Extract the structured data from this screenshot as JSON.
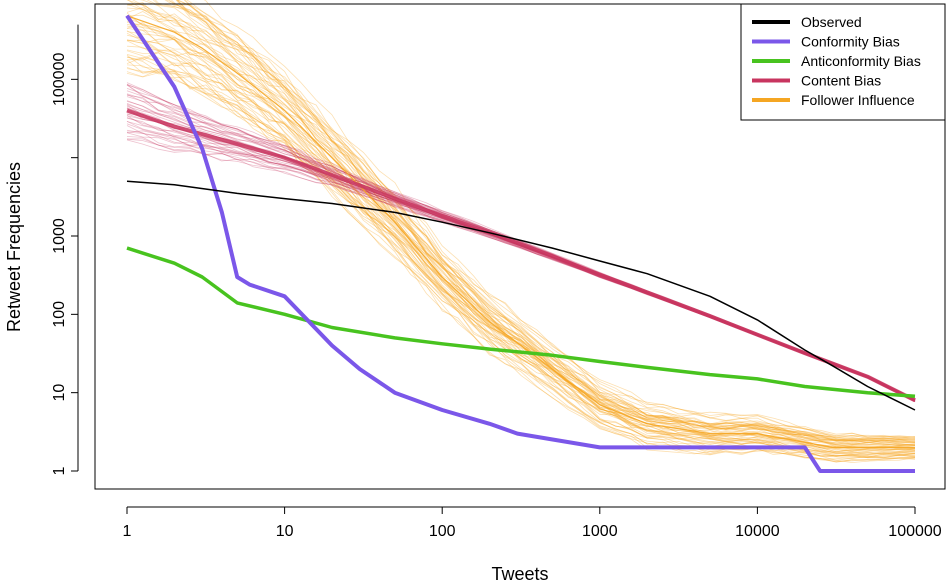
{
  "chart_data": {
    "type": "line",
    "scale": "log-log",
    "title": "",
    "xlabel": "Tweets",
    "ylabel": "Retweet Frequencies",
    "xlim": [
      1,
      100000
    ],
    "ylim": [
      1,
      1000000
    ],
    "x_ticks": [
      1,
      10,
      100,
      1000,
      10000,
      100000
    ],
    "x_tick_labels": [
      "1",
      "10",
      "100",
      "1000",
      "10000",
      "100000"
    ],
    "y_ticks": [
      1,
      10,
      100,
      1000,
      100000
    ],
    "y_tick_labels": [
      "1",
      "10",
      "100",
      "1000",
      "100000"
    ],
    "legend_position": "top-right",
    "series": [
      {
        "name": "Observed",
        "color": "#000000",
        "points": [
          [
            1,
            5000
          ],
          [
            2,
            4500
          ],
          [
            5,
            3500
          ],
          [
            10,
            3000
          ],
          [
            20,
            2600
          ],
          [
            50,
            2000
          ],
          [
            100,
            1500
          ],
          [
            200,
            1100
          ],
          [
            500,
            700
          ],
          [
            1000,
            480
          ],
          [
            2000,
            330
          ],
          [
            5000,
            170
          ],
          [
            10000,
            85
          ],
          [
            20000,
            35
          ],
          [
            30000,
            22
          ],
          [
            50000,
            12
          ],
          [
            100000,
            6
          ]
        ]
      },
      {
        "name": "Conformity Bias",
        "color": "#7b57e9",
        "points": [
          [
            1,
            650000
          ],
          [
            2,
            80000
          ],
          [
            3,
            13000
          ],
          [
            4,
            2000
          ],
          [
            5,
            300
          ],
          [
            6,
            240
          ],
          [
            10,
            170
          ],
          [
            20,
            40
          ],
          [
            30,
            20
          ],
          [
            50,
            10
          ],
          [
            100,
            6
          ],
          [
            200,
            4
          ],
          [
            300,
            3
          ],
          [
            1000,
            2
          ],
          [
            20000,
            2
          ],
          [
            25000,
            1
          ],
          [
            100000,
            1
          ]
        ]
      },
      {
        "name": "Anticonformity Bias",
        "color": "#48c31f",
        "points": [
          [
            1,
            700
          ],
          [
            2,
            450
          ],
          [
            3,
            300
          ],
          [
            5,
            140
          ],
          [
            10,
            100
          ],
          [
            20,
            68
          ],
          [
            50,
            50
          ],
          [
            100,
            42
          ],
          [
            200,
            36
          ],
          [
            500,
            30
          ],
          [
            1000,
            25
          ],
          [
            2000,
            21
          ],
          [
            5000,
            17
          ],
          [
            10000,
            15
          ],
          [
            20000,
            12
          ],
          [
            50000,
            10
          ],
          [
            100000,
            9
          ]
        ]
      },
      {
        "name": "Content Bias",
        "color": "#c8355f",
        "points": [
          [
            1,
            40000
          ],
          [
            2,
            25000
          ],
          [
            5,
            15000
          ],
          [
            10,
            10000
          ],
          [
            20,
            6000
          ],
          [
            50,
            3000
          ],
          [
            100,
            1800
          ],
          [
            200,
            1100
          ],
          [
            500,
            550
          ],
          [
            1000,
            320
          ],
          [
            2000,
            190
          ],
          [
            5000,
            95
          ],
          [
            10000,
            55
          ],
          [
            20000,
            32
          ],
          [
            50000,
            16
          ],
          [
            100000,
            8
          ]
        ]
      },
      {
        "name": "Follower Influence",
        "color": "#f5a623",
        "points": [
          [
            1,
            650000
          ],
          [
            2,
            400000
          ],
          [
            3,
            250000
          ],
          [
            5,
            120000
          ],
          [
            10,
            40000
          ],
          [
            20,
            10000
          ],
          [
            50,
            1500
          ],
          [
            100,
            300
          ],
          [
            200,
            80
          ],
          [
            500,
            20
          ],
          [
            1000,
            7
          ],
          [
            2000,
            4
          ],
          [
            5000,
            3
          ],
          [
            10000,
            3
          ],
          [
            30000,
            2
          ],
          [
            100000,
            2
          ]
        ]
      }
    ]
  }
}
